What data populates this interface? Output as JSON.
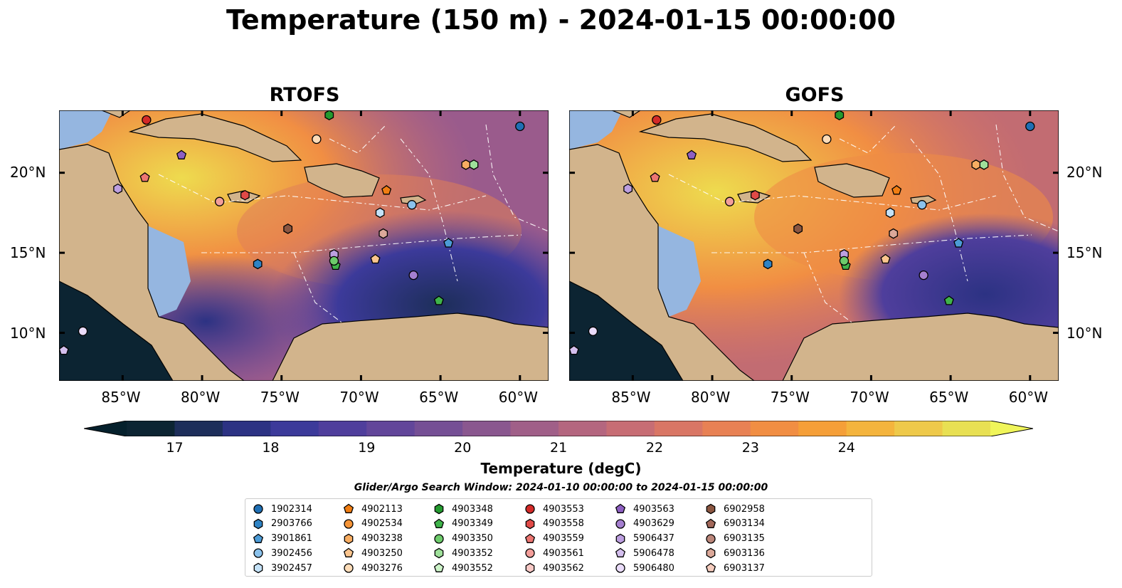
{
  "title": "Temperature (150 m) - 2024-01-15 00:00:00",
  "panels": [
    {
      "title": "RTOFS",
      "left": 83
    },
    {
      "title": "GOFS",
      "left": 800
    }
  ],
  "lat_ticks": [
    "20°N",
    "15°N",
    "10°N"
  ],
  "lon_ticks": [
    "85°W",
    "80°W",
    "75°W",
    "70°W",
    "65°W",
    "60°W"
  ],
  "colorbar": {
    "label": "Temperature (degC)",
    "ticks": [
      "17",
      "18",
      "19",
      "20",
      "21",
      "22",
      "23",
      "24"
    ],
    "colors": [
      "#0c2432",
      "#1d2e5a",
      "#2c3283",
      "#3c3a9a",
      "#4f3e9c",
      "#62469a",
      "#754f95",
      "#8a578f",
      "#a05f88",
      "#b4667f",
      "#c76d74",
      "#d97665",
      "#e88154",
      "#f18e43",
      "#f59f38",
      "#f4b43d",
      "#eec94a",
      "#e8e053"
    ],
    "under": "#05202c",
    "over": "#f0f55a"
  },
  "legend": {
    "title": "Glider/Argo Search Window: 2024-01-10 00:00:00 to 2024-01-15 00:00:00",
    "items": [
      {
        "id": "1902314",
        "shape": "circle",
        "color": "#1f6fb4"
      },
      {
        "id": "2903766",
        "shape": "hexagon",
        "color": "#2f83c4"
      },
      {
        "id": "3901861",
        "shape": "pentagon",
        "color": "#4c9bd6"
      },
      {
        "id": "3902456",
        "shape": "circle",
        "color": "#8bc2ec"
      },
      {
        "id": "3902457",
        "shape": "hexagon",
        "color": "#c4e2f8"
      },
      {
        "id": "4902113",
        "shape": "pentagon",
        "color": "#f07d12"
      },
      {
        "id": "4902534",
        "shape": "circle",
        "color": "#f59437"
      },
      {
        "id": "4903238",
        "shape": "hexagon",
        "color": "#f8ad62"
      },
      {
        "id": "4903250",
        "shape": "pentagon",
        "color": "#fbc58e"
      },
      {
        "id": "4903276",
        "shape": "circle",
        "color": "#fddcb8"
      },
      {
        "id": "4903348",
        "shape": "hexagon",
        "color": "#239a2f"
      },
      {
        "id": "4903349",
        "shape": "pentagon",
        "color": "#3fb34a"
      },
      {
        "id": "4903350",
        "shape": "circle",
        "color": "#6dcb6b"
      },
      {
        "id": "4903352",
        "shape": "hexagon",
        "color": "#9fe09a"
      },
      {
        "id": "4903552",
        "shape": "pentagon",
        "color": "#ccf3c8"
      },
      {
        "id": "4903553",
        "shape": "circle",
        "color": "#d42a28"
      },
      {
        "id": "4903558",
        "shape": "hexagon",
        "color": "#e04a47"
      },
      {
        "id": "4903559",
        "shape": "pentagon",
        "color": "#ec7571"
      },
      {
        "id": "4903561",
        "shape": "circle",
        "color": "#f39e9a"
      },
      {
        "id": "4903562",
        "shape": "hexagon",
        "color": "#f9c9c6"
      },
      {
        "id": "4903563",
        "shape": "pentagon",
        "color": "#8e5fc2"
      },
      {
        "id": "4903629",
        "shape": "circle",
        "color": "#a57fd0"
      },
      {
        "id": "5906437",
        "shape": "hexagon",
        "color": "#bd9fe0"
      },
      {
        "id": "5906478",
        "shape": "pentagon",
        "color": "#d4bfee"
      },
      {
        "id": "5906480",
        "shape": "circle",
        "color": "#eadcfa"
      },
      {
        "id": "6902958",
        "shape": "hexagon",
        "color": "#8b5641"
      },
      {
        "id": "6903134",
        "shape": "pentagon",
        "color": "#a2685a"
      },
      {
        "id": "6903135",
        "shape": "circle",
        "color": "#bb867a"
      },
      {
        "id": "6903136",
        "shape": "hexagon",
        "color": "#dba899"
      },
      {
        "id": "6903137",
        "shape": "pentagon",
        "color": "#f5ccbe"
      }
    ]
  },
  "markers": [
    {
      "id": "4903553",
      "lon": -83.5,
      "lat": 23.3
    },
    {
      "id": "4903348",
      "lon": -72.0,
      "lat": 23.6
    },
    {
      "id": "1902314",
      "lon": -60.0,
      "lat": 22.9
    },
    {
      "id": "4903276",
      "lon": -72.8,
      "lat": 22.1
    },
    {
      "id": "4903563",
      "lon": -81.3,
      "lat": 21.1
    },
    {
      "id": "4903238",
      "lon": -63.4,
      "lat": 20.5
    },
    {
      "id": "4903352",
      "lon": -62.9,
      "lat": 20.5
    },
    {
      "id": "4903559",
      "lon": -83.6,
      "lat": 19.7
    },
    {
      "id": "5906437",
      "lon": -85.3,
      "lat": 19.0
    },
    {
      "id": "4903561",
      "lon": -78.9,
      "lat": 18.2
    },
    {
      "id": "4903558",
      "lon": -77.3,
      "lat": 18.6
    },
    {
      "id": "4902113",
      "lon": -68.4,
      "lat": 18.9
    },
    {
      "id": "3902456",
      "lon": -66.8,
      "lat": 18.0
    },
    {
      "id": "3902457",
      "lon": -68.8,
      "lat": 17.5
    },
    {
      "id": "6902958",
      "lon": -74.6,
      "lat": 16.5
    },
    {
      "id": "6903136",
      "lon": -68.6,
      "lat": 16.2
    },
    {
      "id": "3901861",
      "lon": -64.5,
      "lat": 15.6
    },
    {
      "id": "5906437",
      "lon": -71.7,
      "lat": 14.9
    },
    {
      "id": "4903349",
      "lon": -71.6,
      "lat": 14.2
    },
    {
      "id": "4903350",
      "lon": -71.7,
      "lat": 14.5
    },
    {
      "id": "4903250",
      "lon": -69.1,
      "lat": 14.6
    },
    {
      "id": "2903766",
      "lon": -76.5,
      "lat": 14.3
    },
    {
      "id": "4903629",
      "lon": -66.7,
      "lat": 13.6
    },
    {
      "id": "4903349",
      "lon": -65.1,
      "lat": 12.0
    },
    {
      "id": "5906480",
      "lon": -87.5,
      "lat": 10.1
    },
    {
      "id": "5906478",
      "lon": -88.7,
      "lat": 8.9
    }
  ]
}
